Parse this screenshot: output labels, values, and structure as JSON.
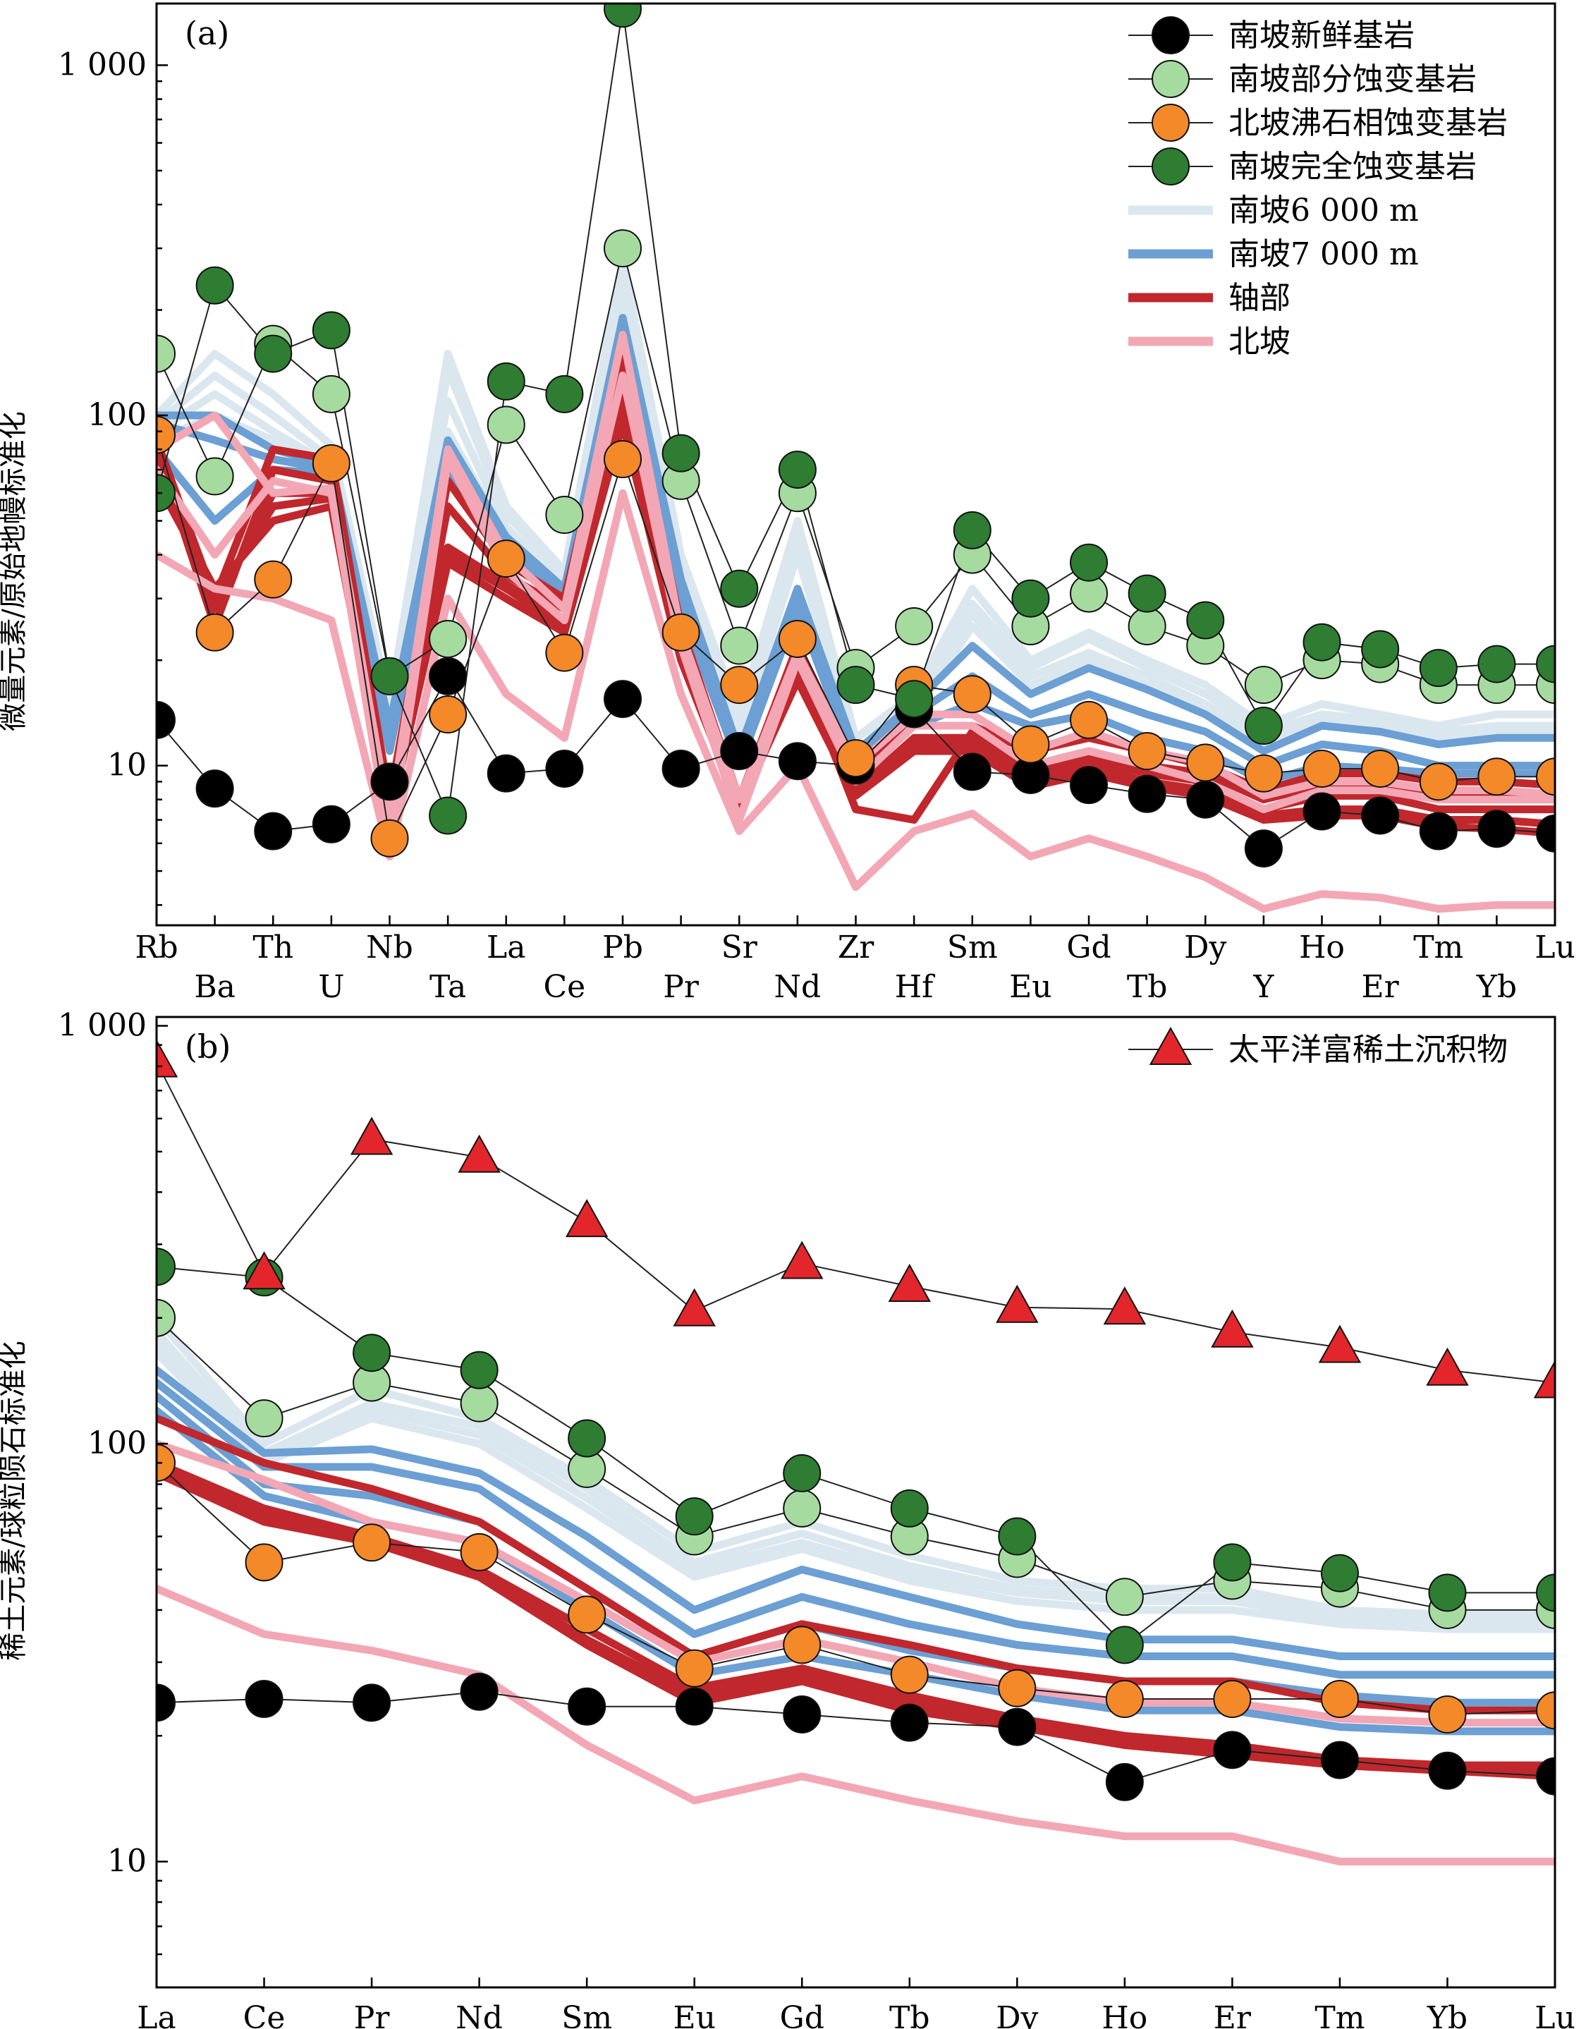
{
  "panel_labels": [
    "(a)",
    "(b)"
  ],
  "chart_data": [
    {
      "type": "line",
      "panel": "(a)",
      "ylabel": "微量元素/原始地幔标准化",
      "yscale": "log",
      "ylim": [
        3.5,
        1500
      ],
      "yticks": [
        10,
        100,
        1000
      ],
      "ytick_labels": [
        "10",
        "100",
        "1 000"
      ],
      "categories": [
        "Rb",
        "Ba",
        "Th",
        "U",
        "Nb",
        "Ta",
        "La",
        "Ce",
        "Pb",
        "Pr",
        "Sr",
        "Nd",
        "Zr",
        "Hf",
        "Sm",
        "Eu",
        "Gd",
        "Tb",
        "Dy",
        "Y",
        "Ho",
        "Er",
        "Tm",
        "Yb",
        "Lu"
      ],
      "legend": [
        {
          "label": "南坡新鲜基岩",
          "kind": "marker",
          "color": "#000000"
        },
        {
          "label": "南坡部分蚀变基岩",
          "kind": "marker",
          "color": "#a6dba0"
        },
        {
          "label": "北坡沸石相蚀变基岩",
          "kind": "marker",
          "color": "#f4892a"
        },
        {
          "label": "南坡完全蚀变基岩",
          "kind": "marker",
          "color": "#2e7d32"
        },
        {
          "label": "南坡6 000 m",
          "kind": "band",
          "color": "#dbe7ef"
        },
        {
          "label": "南坡7 000 m",
          "kind": "band",
          "color": "#6c9fd3"
        },
        {
          "label": "轴部",
          "kind": "band",
          "color": "#c0282d"
        },
        {
          "label": "北坡",
          "kind": "band",
          "color": "#f3a7b5"
        }
      ],
      "series": [
        {
          "group": "band",
          "color": "#dbe7ef",
          "values": [
            100,
            150,
            115,
            82,
            15,
            150,
            55,
            36,
            280,
            40,
            14,
            50,
            12,
            16,
            32,
            20,
            24,
            20,
            17,
            13,
            15,
            14,
            13,
            14,
            14
          ]
        },
        {
          "group": "band",
          "color": "#dbe7ef",
          "values": [
            95,
            130,
            100,
            75,
            14,
            135,
            52,
            35,
            260,
            37,
            13,
            45,
            12,
            15,
            29,
            19,
            23,
            19,
            16,
            12.5,
            14,
            13.5,
            12.5,
            13,
            13
          ]
        },
        {
          "group": "band",
          "color": "#dbe7ef",
          "values": [
            90,
            115,
            90,
            72,
            13,
            110,
            48,
            33,
            240,
            34,
            12.5,
            42,
            11,
            15,
            27,
            18,
            21,
            18,
            15,
            12,
            13.5,
            13,
            12,
            12.5,
            12.5
          ]
        },
        {
          "group": "band",
          "color": "#dbe7ef",
          "values": [
            85,
            100,
            85,
            70,
            12,
            90,
            45,
            32,
            220,
            32,
            12,
            40,
            11,
            14,
            25,
            17,
            20,
            17,
            14.5,
            11.5,
            13,
            12.5,
            11.5,
            12,
            12
          ]
        },
        {
          "group": "band",
          "color": "#6c9fd3",
          "values": [
            100,
            100,
            80,
            72,
            13,
            85,
            45,
            32,
            190,
            34,
            11,
            32,
            11,
            15,
            22,
            16,
            19,
            16.5,
            14,
            11,
            13,
            12.5,
            11.5,
            12,
            12
          ]
        },
        {
          "group": "band",
          "color": "#6c9fd3",
          "values": [
            95,
            85,
            75,
            70,
            12,
            80,
            42,
            30,
            180,
            30,
            10.5,
            30,
            10.5,
            14,
            18,
            14,
            16,
            14,
            12.5,
            10,
            11.5,
            11,
            10,
            10,
            10
          ]
        },
        {
          "group": "band",
          "color": "#6c9fd3",
          "values": [
            80,
            50,
            70,
            68,
            11,
            70,
            40,
            28,
            160,
            28,
            10,
            28,
            10,
            13,
            15,
            13,
            14,
            12,
            11,
            9,
            10,
            9.8,
            9.5,
            9.5,
            9.5
          ]
        },
        {
          "group": "band",
          "color": "#c0282d",
          "values": [
            85,
            30,
            80,
            75,
            8,
            65,
            38,
            30,
            150,
            25,
            8,
            22,
            9.5,
            13,
            13,
            11,
            12,
            11,
            10,
            8.5,
            9.5,
            9.5,
            9,
            9,
            8.8
          ]
        },
        {
          "group": "band",
          "color": "#c0282d",
          "values": [
            80,
            25,
            70,
            65,
            7.5,
            55,
            35,
            28,
            120,
            23,
            7.5,
            20,
            7.5,
            7,
            12.5,
            10,
            11,
            10,
            9.5,
            8,
            8.8,
            8.8,
            8.2,
            8.2,
            8
          ]
        },
        {
          "group": "band",
          "color": "#c0282d",
          "values": [
            75,
            28,
            60,
            60,
            7.5,
            42,
            33,
            26,
            110,
            22,
            7.8,
            19,
            8.5,
            12,
            12,
            9.5,
            10.5,
            9.5,
            9,
            7.5,
            8.2,
            8.2,
            7.5,
            7.5,
            7.5
          ]
        },
        {
          "group": "band",
          "color": "#c0282d",
          "values": [
            70,
            30,
            55,
            58,
            7,
            40,
            32,
            25,
            100,
            21,
            8,
            18,
            8.8,
            11.5,
            11.5,
            9,
            10,
            9,
            8.5,
            7.2,
            7.5,
            7.5,
            7,
            7,
            6.8
          ]
        },
        {
          "group": "band",
          "color": "#c0282d",
          "values": [
            65,
            32,
            50,
            55,
            7.2,
            38,
            30,
            24,
            95,
            20,
            7.6,
            17.5,
            8.2,
            11,
            11,
            8.7,
            9.5,
            8.7,
            8.2,
            7,
            7.2,
            7.2,
            6.7,
            6.6,
            6.4
          ]
        },
        {
          "group": "band",
          "color": "#f3a7b5",
          "values": [
            80,
            100,
            60,
            62,
            7,
            80,
            40,
            28,
            170,
            24,
            8,
            21,
            10,
            14,
            14,
            11,
            12.5,
            11,
            10.2,
            8.2,
            9,
            9,
            8.5,
            8.5,
            8.3
          ]
        },
        {
          "group": "band",
          "color": "#f3a7b5",
          "values": [
            70,
            40,
            65,
            60,
            6,
            75,
            36,
            26,
            130,
            22,
            7,
            20,
            9,
            13,
            13,
            10,
            11,
            10,
            9,
            7.5,
            8.5,
            8.5,
            8,
            8,
            8
          ]
        },
        {
          "group": "band",
          "color": "#f3a7b5",
          "values": [
            40,
            32,
            30,
            26,
            5.5,
            30,
            16,
            12,
            60,
            16,
            6.5,
            10,
            4.5,
            6.5,
            7.3,
            5.5,
            6.2,
            5.5,
            4.8,
            3.9,
            4.3,
            4.2,
            3.9,
            4,
            4
          ]
        },
        {
          "group": "marker",
          "color": "#000000",
          "name": "南坡新鲜基岩",
          "values": [
            13.5,
            8.6,
            6.5,
            6.8,
            9,
            18,
            9.5,
            9.8,
            15.5,
            9.8,
            11,
            10.3,
            10,
            14.5,
            9.6,
            9.4,
            8.8,
            8.3,
            8,
            5.8,
            7.4,
            7.2,
            6.5,
            6.6,
            6.4
          ]
        },
        {
          "group": "marker",
          "color": "#a6dba0",
          "name": "南坡部分蚀变基岩",
          "values": [
            150,
            67,
            160,
            115,
            18,
            23,
            94,
            52,
            300,
            65,
            22,
            60,
            19,
            25,
            40,
            25,
            31,
            25,
            22,
            17,
            20,
            19.5,
            17,
            17,
            17
          ]
        },
        {
          "group": "marker",
          "color": "#f4892a",
          "name": "北坡沸石相蚀变基岩",
          "values": [
            88,
            24,
            34,
            73,
            6.2,
            14,
            39,
            21,
            75,
            24,
            17,
            23,
            10.5,
            17,
            16,
            11.5,
            13.5,
            11,
            10.2,
            9.5,
            9.8,
            9.8,
            9,
            9.3,
            9.3
          ]
        },
        {
          "group": "marker",
          "color": "#2e7d32",
          "name": "南坡完全蚀变基岩",
          "values": [
            60,
            235,
            150,
            175,
            18,
            7.2,
            125,
            115,
            1450,
            78,
            32,
            70,
            17,
            15.5,
            47,
            30,
            38,
            31,
            26,
            13,
            22.5,
            21.5,
            19,
            19.5,
            19.5
          ]
        }
      ]
    },
    {
      "type": "line",
      "panel": "(b)",
      "ylabel": "稀土元素/球粒陨石标准化",
      "yscale": "log",
      "ylim": [
        5,
        1050
      ],
      "yticks": [
        10,
        100,
        1000
      ],
      "ytick_labels": [
        "10",
        "100",
        "1 000"
      ],
      "categories": [
        "La",
        "Ce",
        "Pr",
        "Nd",
        "Sm",
        "Eu",
        "Gd",
        "Tb",
        "Dy",
        "Ho",
        "Er",
        "Tm",
        "Yb",
        "Lu"
      ],
      "legend": [
        {
          "label": "太平洋富稀土沉积物",
          "kind": "triangle",
          "color": "#e3262b"
        }
      ],
      "series": [
        {
          "group": "band",
          "color": "#dbe7ef",
          "values": [
            200,
            100,
            135,
            115,
            82,
            55,
            65,
            54,
            47,
            45,
            45,
            40,
            39,
            39
          ]
        },
        {
          "group": "band",
          "color": "#dbe7ef",
          "values": [
            185,
            95,
            125,
            110,
            78,
            52,
            61,
            51,
            45,
            43,
            43,
            39,
            38,
            38
          ]
        },
        {
          "group": "band",
          "color": "#dbe7ef",
          "values": [
            175,
            92,
            120,
            105,
            74,
            50,
            58,
            49,
            44,
            42,
            42,
            38,
            37,
            37
          ]
        },
        {
          "group": "band",
          "color": "#dbe7ef",
          "values": [
            165,
            90,
            115,
            100,
            70,
            48,
            56,
            47,
            42,
            40,
            40,
            37,
            36,
            36
          ]
        },
        {
          "group": "band",
          "color": "#6c9fd3",
          "values": [
            150,
            95,
            97,
            85,
            60,
            40,
            50,
            43,
            37,
            34,
            34,
            31,
            31,
            31
          ]
        },
        {
          "group": "band",
          "color": "#6c9fd3",
          "values": [
            140,
            88,
            88,
            78,
            52,
            35,
            43,
            37,
            33,
            31,
            31,
            28,
            28,
            28
          ]
        },
        {
          "group": "band",
          "color": "#6c9fd3",
          "values": [
            130,
            80,
            75,
            65,
            45,
            31,
            37,
            32,
            29,
            27,
            27,
            25,
            24,
            24
          ]
        },
        {
          "group": "band",
          "color": "#6c9fd3",
          "values": [
            120,
            75,
            65,
            58,
            40,
            28,
            31,
            28,
            25,
            23,
            23,
            21,
            20.5,
            20.5
          ]
        },
        {
          "group": "band",
          "color": "#c0282d",
          "values": [
            115,
            90,
            78,
            65,
            45,
            31,
            37,
            33,
            29,
            27,
            27,
            24,
            23,
            23
          ]
        },
        {
          "group": "band",
          "color": "#c0282d",
          "values": [
            90,
            70,
            60,
            50,
            36,
            26,
            29,
            25,
            22,
            20,
            19,
            17.5,
            17,
            17
          ]
        },
        {
          "group": "band",
          "color": "#c0282d",
          "values": [
            85,
            65,
            58,
            48,
            33,
            24,
            27,
            23,
            21,
            19,
            18,
            17,
            16.5,
            16
          ]
        },
        {
          "group": "band",
          "color": "#c0282d",
          "values": [
            88,
            67,
            59,
            49,
            34,
            25,
            28,
            24,
            21.5,
            19.5,
            18.5,
            17.2,
            16.8,
            16.5
          ]
        },
        {
          "group": "band",
          "color": "#f3a7b5",
          "values": [
            100,
            82,
            65,
            58,
            42,
            30,
            34,
            30,
            26,
            24,
            24,
            22,
            21.5,
            21.5
          ]
        },
        {
          "group": "band",
          "color": "#f3a7b5",
          "values": [
            45,
            35,
            32,
            28,
            19,
            14,
            16,
            14,
            12.5,
            11.5,
            11.5,
            10,
            10,
            10
          ]
        },
        {
          "group": "marker",
          "color": "#000000",
          "values": [
            24,
            24.5,
            24,
            25.5,
            23.5,
            23.5,
            22.5,
            21.5,
            21,
            15.5,
            18.5,
            17.5,
            16.5,
            16
          ]
        },
        {
          "group": "marker",
          "color": "#a6dba0",
          "values": [
            200,
            115,
            140,
            125,
            87,
            60,
            70,
            60,
            53,
            43,
            47,
            45,
            40,
            40
          ]
        },
        {
          "group": "marker",
          "color": "#f4892a",
          "values": [
            90,
            52,
            58,
            55,
            39,
            29,
            33,
            28,
            26,
            24.5,
            24.5,
            24.5,
            22.5,
            23
          ]
        },
        {
          "group": "marker",
          "color": "#2e7d32",
          "values": [
            265,
            250,
            165,
            150,
            103,
            67,
            85,
            70,
            60,
            33,
            52,
            49,
            44,
            44
          ]
        },
        {
          "group": "triangle",
          "color": "#e3262b",
          "name": "太平洋富稀土沉积物",
          "values": [
            820,
            255,
            535,
            485,
            340,
            208,
            270,
            238,
            212,
            210,
            185,
            170,
            150,
            140
          ]
        }
      ]
    }
  ]
}
